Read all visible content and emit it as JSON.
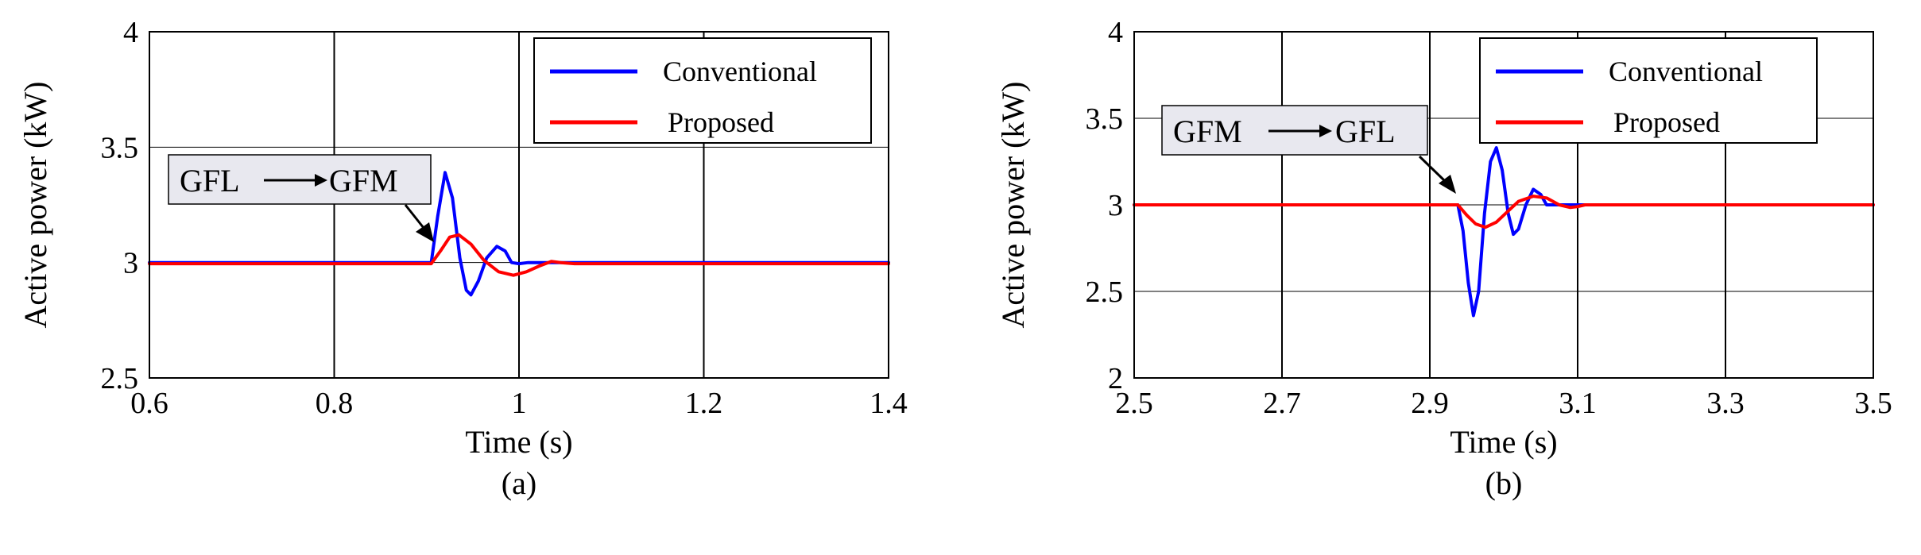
{
  "chart_data": [
    {
      "type": "line",
      "panel_label": "(a)",
      "xlabel": "Time (s)",
      "ylabel": "Active power (kW)",
      "xlim": [
        0.6,
        1.4
      ],
      "ylim": [
        2.5,
        4.0
      ],
      "xticks": [
        0.6,
        0.8,
        1.0,
        1.2,
        1.4
      ],
      "xtick_labels": [
        "0.6",
        "0.8",
        "1",
        "1.2",
        "1.4"
      ],
      "yticks": [
        2.5,
        3.0,
        3.5,
        4.0
      ],
      "ytick_labels": [
        "2.5",
        "3",
        "3.5",
        "4"
      ],
      "grid": true,
      "legend_position": "top-right",
      "annotation": {
        "from": "GFL",
        "to": "GFM",
        "points_to": [
          0.908,
          3.0
        ]
      },
      "series": [
        {
          "name": "Conventional",
          "color": "#0000ff",
          "points": [
            [
              0.6,
              3.0
            ],
            [
              0.905,
              3.0
            ],
            [
              0.912,
              3.2
            ],
            [
              0.92,
              3.39
            ],
            [
              0.928,
              3.28
            ],
            [
              0.936,
              3.02
            ],
            [
              0.943,
              2.88
            ],
            [
              0.948,
              2.86
            ],
            [
              0.956,
              2.92
            ],
            [
              0.965,
              3.02
            ],
            [
              0.976,
              3.07
            ],
            [
              0.985,
              3.05
            ],
            [
              0.992,
              3.0
            ],
            [
              1.0,
              2.995
            ],
            [
              1.01,
              3.0
            ],
            [
              1.4,
              3.0
            ]
          ]
        },
        {
          "name": "Proposed",
          "color": "#ff0000",
          "points": [
            [
              0.6,
              2.995
            ],
            [
              0.905,
              2.995
            ],
            [
              0.915,
              3.05
            ],
            [
              0.925,
              3.11
            ],
            [
              0.935,
              3.12
            ],
            [
              0.948,
              3.08
            ],
            [
              0.962,
              3.01
            ],
            [
              0.978,
              2.96
            ],
            [
              0.994,
              2.945
            ],
            [
              1.008,
              2.96
            ],
            [
              1.022,
              2.985
            ],
            [
              1.035,
              3.005
            ],
            [
              1.045,
              3.0
            ],
            [
              1.06,
              2.995
            ],
            [
              1.4,
              2.995
            ]
          ]
        }
      ]
    },
    {
      "type": "line",
      "panel_label": "(b)",
      "xlabel": "Time (s)",
      "ylabel": "Active power (kW)",
      "xlim": [
        2.5,
        3.5
      ],
      "ylim": [
        2.0,
        4.0
      ],
      "xticks": [
        2.5,
        2.7,
        2.9,
        3.1,
        3.3,
        3.5
      ],
      "xtick_labels": [
        "2.5",
        "2.7",
        "2.9",
        "3.1",
        "3.3",
        "3.5"
      ],
      "yticks": [
        2.0,
        2.5,
        3.0,
        3.5,
        4.0
      ],
      "ytick_labels": [
        "2",
        "2.5",
        "3",
        "3.5",
        "4"
      ],
      "grid": true,
      "legend_position": "top-right",
      "annotation": {
        "from": "GFM",
        "to": "GFL",
        "points_to": [
          2.935,
          2.98
        ]
      },
      "series": [
        {
          "name": "Conventional",
          "color": "#0000ff",
          "points": [
            [
              2.5,
              3.0
            ],
            [
              2.938,
              3.0
            ],
            [
              2.945,
              2.85
            ],
            [
              2.952,
              2.55
            ],
            [
              2.959,
              2.36
            ],
            [
              2.966,
              2.5
            ],
            [
              2.974,
              2.95
            ],
            [
              2.982,
              3.25
            ],
            [
              2.99,
              3.33
            ],
            [
              2.998,
              3.2
            ],
            [
              3.006,
              2.95
            ],
            [
              3.013,
              2.83
            ],
            [
              3.02,
              2.86
            ],
            [
              3.03,
              3.0
            ],
            [
              3.04,
              3.09
            ],
            [
              3.05,
              3.06
            ],
            [
              3.058,
              3.0
            ],
            [
              3.1,
              3.0
            ],
            [
              3.5,
              3.0
            ]
          ]
        },
        {
          "name": "Proposed",
          "color": "#ff0000",
          "points": [
            [
              2.5,
              3.0
            ],
            [
              2.938,
              3.0
            ],
            [
              2.95,
              2.94
            ],
            [
              2.962,
              2.89
            ],
            [
              2.975,
              2.87
            ],
            [
              2.99,
              2.9
            ],
            [
              3.005,
              2.96
            ],
            [
              3.02,
              3.02
            ],
            [
              3.04,
              3.05
            ],
            [
              3.058,
              3.04
            ],
            [
              3.075,
              3.0
            ],
            [
              3.09,
              2.985
            ],
            [
              3.1,
              2.99
            ],
            [
              3.11,
              3.0
            ],
            [
              3.5,
              3.0
            ]
          ]
        }
      ]
    }
  ]
}
